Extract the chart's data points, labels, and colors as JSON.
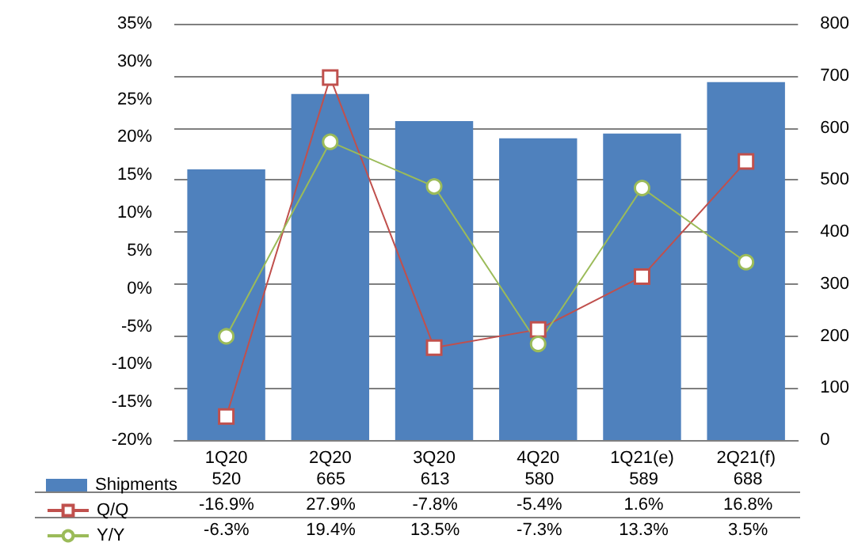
{
  "chart_data": {
    "type": "bar",
    "categories": [
      "1Q20",
      "2Q20",
      "3Q20",
      "4Q20",
      "1Q21(e)",
      "2Q21(f)"
    ],
    "series": [
      {
        "name": "Shipments",
        "axis": "y2",
        "color": "#4f81bd",
        "values": [
          520,
          665,
          613,
          580,
          589,
          688
        ],
        "value_labels": [
          "520",
          "665",
          "613",
          "580",
          "589",
          "688"
        ]
      },
      {
        "name": "Q/Q",
        "type": "line",
        "axis": "y",
        "color": "#c0504d",
        "marker": "square",
        "values": [
          -16.9,
          27.9,
          -7.8,
          -5.4,
          1.6,
          16.8
        ],
        "value_labels": [
          "-16.9%",
          "27.9%",
          "-7.8%",
          "-5.4%",
          "1.6%",
          "16.8%"
        ]
      },
      {
        "name": "Y/Y",
        "type": "line",
        "axis": "y",
        "color": "#9bbb59",
        "marker": "circle",
        "values": [
          -6.3,
          19.4,
          13.5,
          -7.3,
          13.3,
          3.5
        ],
        "value_labels": [
          "-6.3%",
          "19.4%",
          "13.5%",
          "-7.3%",
          "13.3%",
          "3.5%"
        ]
      }
    ],
    "ylim": [
      -20,
      35
    ],
    "yticks": [
      {
        "value": -20,
        "label": "-20%"
      },
      {
        "value": -15,
        "label": "-15%"
      },
      {
        "value": -10,
        "label": "-10%"
      },
      {
        "value": -5,
        "label": "-5%"
      },
      {
        "value": 0,
        "label": "0%"
      },
      {
        "value": 5,
        "label": "5%"
      },
      {
        "value": 10,
        "label": "10%"
      },
      {
        "value": 15,
        "label": "15%"
      },
      {
        "value": 20,
        "label": "20%"
      },
      {
        "value": 25,
        "label": "25%"
      },
      {
        "value": 30,
        "label": "30%"
      },
      {
        "value": 35,
        "label": "35%"
      }
    ],
    "y2lim": [
      0,
      800
    ],
    "y2ticks": [
      0,
      100,
      200,
      300,
      400,
      500,
      600,
      700,
      800
    ],
    "grid": "y",
    "legend": "bottom left"
  }
}
